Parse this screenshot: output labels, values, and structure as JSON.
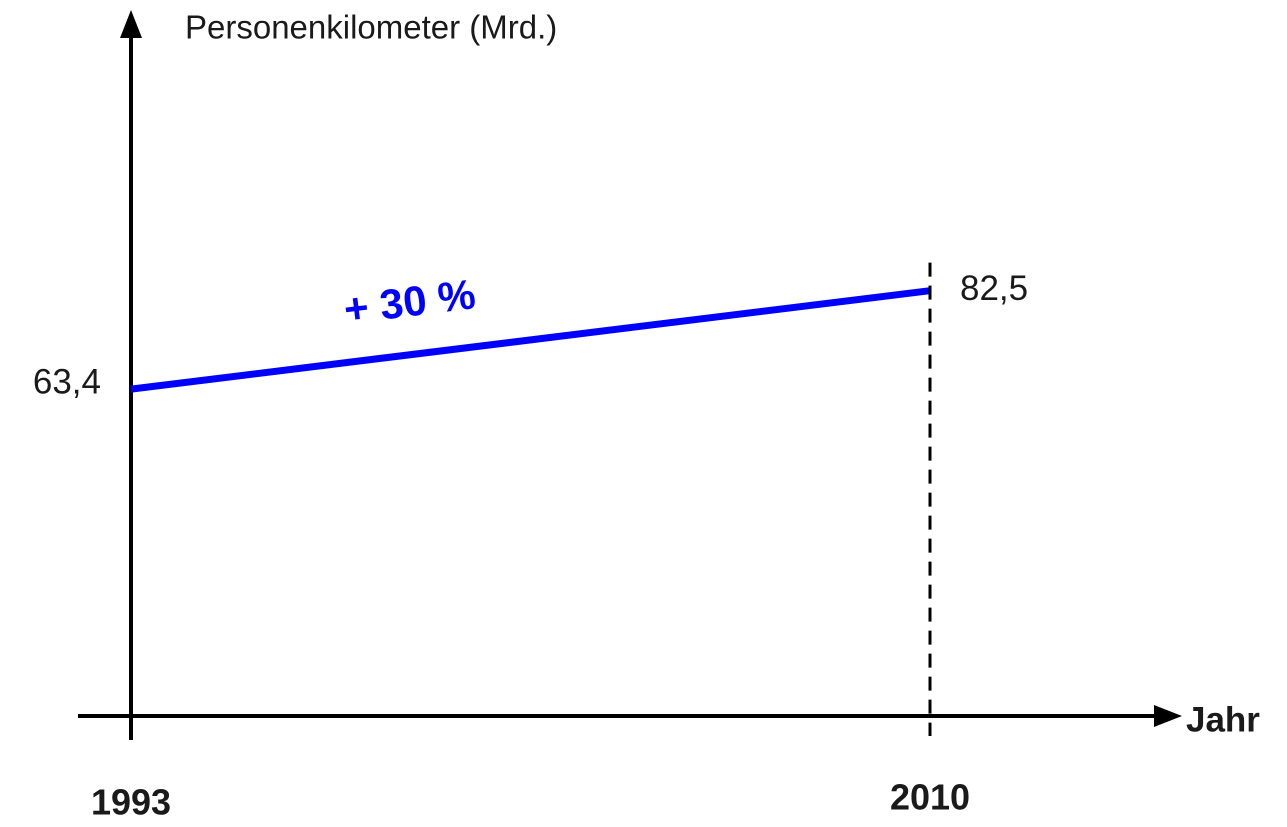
{
  "chart_data": {
    "type": "line",
    "y_label": "Personenkilometer (Mrd.)",
    "x_label": "Jahr",
    "annotation": "+ 30 %",
    "categories": [
      "1993",
      "2010"
    ],
    "series": [
      {
        "color": "#0000ff",
        "values": [
          63.4,
          82.5
        ],
        "value_labels": [
          "63,4",
          "82,5"
        ]
      }
    ],
    "ylim": [
      0,
      135
    ]
  }
}
